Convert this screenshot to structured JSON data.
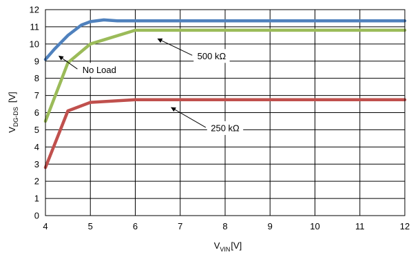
{
  "chart_data": {
    "type": "line",
    "xlabel": {
      "main": "V",
      "sub": "VIN",
      "unit": "[V]"
    },
    "ylabel": {
      "main": "V",
      "sub": "DG-DS",
      "unit": "[V]"
    },
    "xlim": [
      4,
      12
    ],
    "ylim": [
      0,
      12
    ],
    "xticks": [
      4,
      5,
      6,
      7,
      8,
      9,
      10,
      11,
      12
    ],
    "yticks": [
      0,
      1,
      2,
      3,
      4,
      5,
      6,
      7,
      8,
      9,
      10,
      11,
      12
    ],
    "grid": true,
    "legend": "none",
    "series": [
      {
        "color": "#4f81bd",
        "x": [
          4,
          4.2,
          4.5,
          4.8,
          5.0,
          5.3,
          5.6,
          6,
          7,
          8,
          9,
          10,
          11,
          12
        ],
        "y": [
          9.1,
          9.7,
          10.5,
          11.1,
          11.3,
          11.4,
          11.35,
          11.35,
          11.35,
          11.35,
          11.35,
          11.35,
          11.35,
          11.35
        ]
      },
      {
        "color": "#9bbb59",
        "x": [
          4,
          4.5,
          5.0,
          6.0,
          7,
          8,
          9,
          10,
          11,
          12
        ],
        "y": [
          5.5,
          8.9,
          10.0,
          10.8,
          10.8,
          10.8,
          10.8,
          10.8,
          10.8,
          10.8
        ]
      },
      {
        "color": "#c0504d",
        "x": [
          4,
          4.5,
          5.0,
          6.0,
          7,
          8,
          9,
          10,
          11,
          12
        ],
        "y": [
          2.8,
          6.1,
          6.6,
          6.75,
          6.75,
          6.75,
          6.75,
          6.75,
          6.75,
          6.75
        ]
      }
    ],
    "annotations": [
      {
        "text": "No Load",
        "arrow_to": [
          4.3,
          9.3
        ],
        "label_at": [
          5.2,
          8.5
        ]
      },
      {
        "text": "500 kΩ",
        "arrow_to": [
          6.5,
          10.3
        ],
        "label_at": [
          7.7,
          9.3
        ]
      },
      {
        "text": "250 kΩ",
        "arrow_to": [
          6.8,
          6.3
        ],
        "label_at": [
          8.0,
          5.1
        ]
      }
    ]
  }
}
